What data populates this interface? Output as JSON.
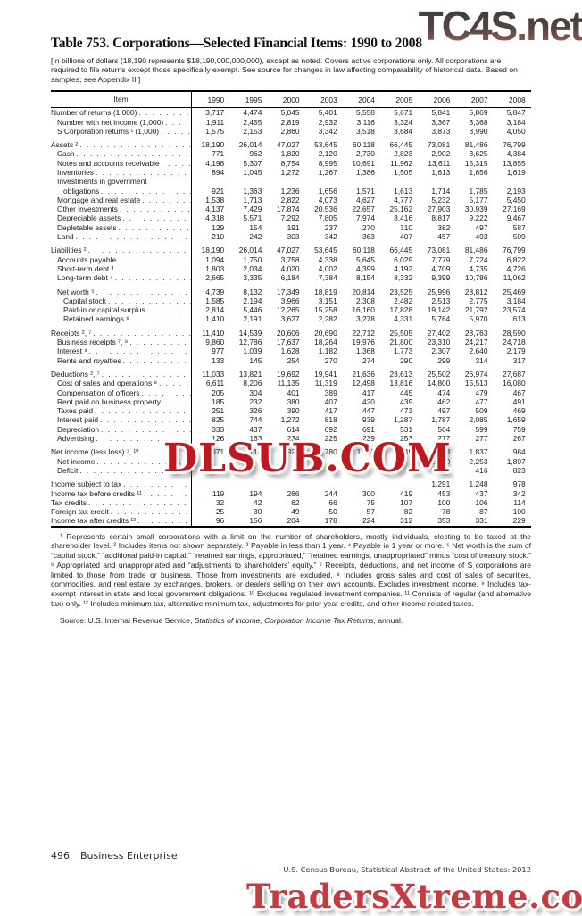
{
  "watermarks": {
    "top": "TC4S.net",
    "middle": "DLSUB.COM",
    "bottom": "TradersXtreme.com",
    "red_color": "#c0181f",
    "bottom_red_color": "#c43b41",
    "top_gradient_dark": "#2d2d2d",
    "top_gradient_rust": "#8d5348"
  },
  "title": "Table 753. Corporations—Selected Financial Items: 1990 to 2008",
  "note": "[In billions of dollars (18,190 represents $18,190,000,000,000), except as noted. Covers active corporations only. All corporations are required to file returns except those specifically exempt. See source for changes in law affecting comparability of historical data. Based on samples; see Appendix III]",
  "table": {
    "item_header": "Item",
    "years": [
      "1990",
      "1995",
      "2000",
      "2003",
      "2004",
      "2005",
      "2006",
      "2007",
      "2008"
    ],
    "rows": [
      {
        "label": "Number of returns (1,000)",
        "indent": 0,
        "values": [
          "3,717",
          "4,474",
          "5,045",
          "5,401",
          "5,558",
          "5,671",
          "5,841",
          "5,869",
          "5,847"
        ]
      },
      {
        "label": "Number with net income (1,000)",
        "indent": 1,
        "values": [
          "1,911",
          "2,455",
          "2,819",
          "2,932",
          "3,116",
          "3,324",
          "3,367",
          "3,368",
          "3,184"
        ]
      },
      {
        "label": "S Corporation returns ¹ (1,000)",
        "indent": 1,
        "values": [
          "1,575",
          "2,153",
          "2,860",
          "3,342",
          "3,518",
          "3,684",
          "3,873",
          "3,990",
          "4,050"
        ]
      },
      {
        "label": "Assets ²",
        "indent": 0,
        "gap": true,
        "values": [
          "18,190",
          "26,014",
          "47,027",
          "53,645",
          "60,118",
          "66,445",
          "73,081",
          "81,486",
          "76,799"
        ]
      },
      {
        "label": "Cash",
        "indent": 1,
        "values": [
          "771",
          "962",
          "1,820",
          "2,120",
          "2,730",
          "2,823",
          "2,902",
          "3,625",
          "4,384"
        ]
      },
      {
        "label": "Notes and accounts receivable",
        "indent": 1,
        "values": [
          "4,198",
          "5,307",
          "8,754",
          "8,995",
          "10,691",
          "11,962",
          "13,611",
          "15,315",
          "13,855"
        ]
      },
      {
        "label": "Inventories",
        "indent": 1,
        "values": [
          "894",
          "1,045",
          "1,272",
          "1,267",
          "1,386",
          "1,505",
          "1,613",
          "1,656",
          "1,619"
        ]
      },
      {
        "label": "Investments in government",
        "indent": 1,
        "dots": false,
        "values": null
      },
      {
        "label": "obligations",
        "indent": 2,
        "values": [
          "921",
          "1,363",
          "1,236",
          "1,656",
          "1,571",
          "1,613",
          "1,714",
          "1,785",
          "2,193"
        ]
      },
      {
        "label": "Mortgage and real estate",
        "indent": 1,
        "values": [
          "1,538",
          "1,713",
          "2,822",
          "4,073",
          "4,627",
          "4,777",
          "5,232",
          "5,177",
          "5,450"
        ]
      },
      {
        "label": "Other investments",
        "indent": 1,
        "values": [
          "4,137",
          "7,429",
          "17,874",
          "20,536",
          "22,657",
          "25,162",
          "27,903",
          "30,939",
          "27,169"
        ]
      },
      {
        "label": "Depreciable assets",
        "indent": 1,
        "values": [
          "4,318",
          "5,571",
          "7,292",
          "7,805",
          "7,974",
          "8,416",
          "8,817",
          "9,222",
          "9,467"
        ]
      },
      {
        "label": "Depletable assets",
        "indent": 1,
        "values": [
          "129",
          "154",
          "191",
          "237",
          "270",
          "310",
          "382",
          "497",
          "587"
        ]
      },
      {
        "label": "Land",
        "indent": 1,
        "values": [
          "210",
          "242",
          "303",
          "342",
          "363",
          "407",
          "457",
          "493",
          "509"
        ]
      },
      {
        "label": "Liabilities ²",
        "indent": 0,
        "gap": true,
        "values": [
          "18,190",
          "26,014",
          "47,027",
          "53,645",
          "60,118",
          "66,445",
          "73,081",
          "81,486",
          "76,799"
        ]
      },
      {
        "label": "Accounts payable",
        "indent": 1,
        "values": [
          "1,094",
          "1,750",
          "3,758",
          "4,338",
          "5,645",
          "6,029",
          "7,779",
          "7,724",
          "6,822"
        ]
      },
      {
        "label": "Short-term debt ³",
        "indent": 1,
        "values": [
          "1,803",
          "2,034",
          "4,020",
          "4,002",
          "4,399",
          "4,192",
          "4,709",
          "4,735",
          "4,726"
        ]
      },
      {
        "label": "Long-term debt ⁴",
        "indent": 1,
        "values": [
          "2,665",
          "3,335",
          "6,184",
          "7,384",
          "8,154",
          "8,332",
          "9,399",
          "10,786",
          "11,062"
        ]
      },
      {
        "label": "Net worth ⁵",
        "indent": 1,
        "gap": true,
        "values": [
          "4,739",
          "8,132",
          "17,349",
          "18,819",
          "20,814",
          "23,525",
          "25,996",
          "28,812",
          "25,469"
        ]
      },
      {
        "label": "Capital stock",
        "indent": 2,
        "values": [
          "1,585",
          "2,194",
          "3,966",
          "3,151",
          "2,308",
          "2,482",
          "2,513",
          "2,775",
          "3,184"
        ]
      },
      {
        "label": "Paid-in or capital surplus",
        "indent": 2,
        "values": [
          "2,814",
          "5,446",
          "12,265",
          "15,258",
          "16,160",
          "17,828",
          "19,142",
          "21,792",
          "23,574"
        ]
      },
      {
        "label": "Retained earnings ⁶",
        "indent": 2,
        "values": [
          "1,410",
          "2,191",
          "3,627",
          "2,282",
          "3,278",
          "4,331",
          "5,764",
          "5,970",
          "613"
        ]
      },
      {
        "label": "Receipts ², ⁷",
        "indent": 0,
        "gap": true,
        "values": [
          "11,410",
          "14,539",
          "20,606",
          "20,690",
          "22,712",
          "25,505",
          "27,402",
          "28,763",
          "28,590"
        ]
      },
      {
        "label": "Business receipts ⁷, ⁸",
        "indent": 1,
        "values": [
          "9,860",
          "12,786",
          "17,637",
          "18,264",
          "19,976",
          "21,800",
          "23,310",
          "24,217",
          "24,718"
        ]
      },
      {
        "label": "Interest ⁹",
        "indent": 1,
        "values": [
          "977",
          "1,039",
          "1,628",
          "1,182",
          "1,368",
          "1,773",
          "2,307",
          "2,640",
          "2,179"
        ]
      },
      {
        "label": "Rents and royalties",
        "indent": 1,
        "values": [
          "133",
          "145",
          "254",
          "270",
          "274",
          "290",
          "299",
          "314",
          "317"
        ]
      },
      {
        "label": "Deductions ², ⁷",
        "indent": 0,
        "gap": true,
        "values": [
          "11,033",
          "13,821",
          "19,692",
          "19,941",
          "21,636",
          "23,613",
          "25,502",
          "26,974",
          "27,687"
        ]
      },
      {
        "label": "Cost of sales and operations ⁸",
        "indent": 1,
        "values": [
          "6,611",
          "8,206",
          "11,135",
          "11,319",
          "12,498",
          "13,816",
          "14,800",
          "15,513",
          "16,080"
        ]
      },
      {
        "label": "Compensation of officers",
        "indent": 1,
        "values": [
          "205",
          "304",
          "401",
          "389",
          "417",
          "445",
          "474",
          "479",
          "467"
        ]
      },
      {
        "label": "Rent paid on business property",
        "indent": 1,
        "values": [
          "185",
          "232",
          "380",
          "407",
          "420",
          "439",
          "462",
          "477",
          "491"
        ]
      },
      {
        "label": "Taxes paid",
        "indent": 1,
        "values": [
          "251",
          "326",
          "390",
          "417",
          "447",
          "473",
          "497",
          "509",
          "469"
        ]
      },
      {
        "label": "Interest paid",
        "indent": 1,
        "values": [
          "825",
          "744",
          "1,272",
          "818",
          "939",
          "1,287",
          "1,787",
          "2,085",
          "1,659"
        ]
      },
      {
        "label": "Depreciation",
        "indent": 1,
        "values": [
          "333",
          "437",
          "614",
          "692",
          "691",
          "531",
          "564",
          "599",
          "759"
        ]
      },
      {
        "label": "Advertising",
        "indent": 1,
        "values": [
          "126",
          "163",
          "234",
          "225",
          "239",
          "253",
          "277",
          "277",
          "267"
        ]
      },
      {
        "label": "Net income (less loss) ⁷, ¹⁰",
        "indent": 0,
        "gap": true,
        "values": [
          "371",
          "714",
          "928",
          "780",
          "1,112",
          "1,949",
          "1,933",
          "1,837",
          "984"
        ]
      },
      {
        "label": "Net income",
        "indent": 1,
        "values": [
          "",
          "",
          "",
          "",
          "",
          "",
          "2,240",
          "2,253",
          "1,807"
        ]
      },
      {
        "label": "Deficit",
        "indent": 1,
        "values": [
          "",
          "",
          "",
          "",
          "",
          "",
          "306",
          "416",
          "823"
        ]
      },
      {
        "label": "Income subject to tax",
        "indent": 0,
        "gap": true,
        "values": [
          "",
          "",
          "",
          "",
          "",
          "",
          "1,291",
          "1,248",
          "978"
        ]
      },
      {
        "label": "Income tax before credits ¹¹",
        "indent": 0,
        "values": [
          "119",
          "194",
          "266",
          "244",
          "300",
          "419",
          "453",
          "437",
          "342"
        ]
      },
      {
        "label": "Tax credits",
        "indent": 0,
        "values": [
          "32",
          "42",
          "62",
          "66",
          "75",
          "107",
          "100",
          "106",
          "114"
        ]
      },
      {
        "label": "Foreign tax credit",
        "indent": 0,
        "values": [
          "25",
          "30",
          "49",
          "50",
          "57",
          "82",
          "78",
          "87",
          "100"
        ]
      },
      {
        "label": "Income tax after credits ¹²",
        "indent": 0,
        "values": [
          "96",
          "156",
          "204",
          "178",
          "224",
          "312",
          "353",
          "331",
          "229"
        ]
      }
    ]
  },
  "footnotes": "¹ Represents certain small corporations with a limit on the number of shareholders, mostly individuals, electing to be taxed at the shareholder level. ² Includes items not shown separately. ³ Payable in less than 1 year. ⁴ Payable in 1 year or more. ⁵ Net worth is the sum of “capital stock,” “additional paid-in capital,” “retained earnings, appropriated,” “retained earnings, unappropriated” minus “cost of treasury stock.” ⁶ Appropriated and unappropriated and “adjustments to shareholders’ equity.” ⁷ Receipts, deductions, and net income of S corporations are limited to those from trade or business. Those from investments are excluded. ⁸ Includes gross sales and cost of sales of securities, commodities, and real estate by exchanges, brokers, or dealers selling on their own accounts. Excludes investment income. ⁹ Includes tax-exempt interest in state and local government obligations. ¹⁰ Excludes regulated investment companies. ¹¹ Consists of regular (and alternative tax) only. ¹² Includes minimum tax, alternative minimum tax, adjustments for prior year credits, and other income-related taxes.",
  "source": {
    "prefix": "Source: U.S. Internal Revenue Service, ",
    "italic": "Statistics of Income, Corporation Income Tax Returns,",
    "suffix": " annual."
  },
  "footer": {
    "page": "496",
    "section": "Business Enterprise",
    "credit": "U.S. Census Bureau, Statistical Abstract of the United States: 2012"
  }
}
